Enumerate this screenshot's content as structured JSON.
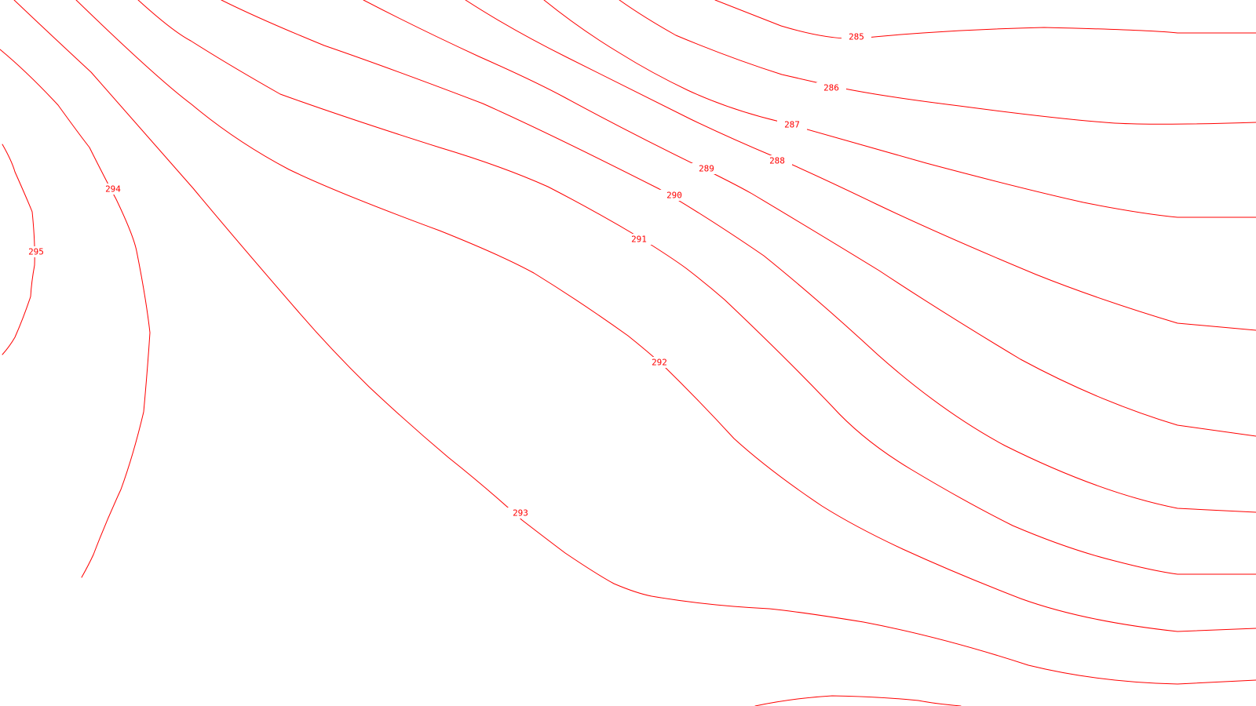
{
  "map": {
    "line_color": "#ff0000",
    "background_color": "#ffffff",
    "contours": [
      {
        "level": "285",
        "label": "285"
      },
      {
        "level": "286",
        "label": "286"
      },
      {
        "level": "287",
        "label": "287"
      },
      {
        "level": "288",
        "label": "288"
      },
      {
        "level": "289",
        "label": "289"
      },
      {
        "level": "290",
        "label": "290"
      },
      {
        "level": "291",
        "label": "291"
      },
      {
        "level": "292",
        "label": "292"
      },
      {
        "level": "293",
        "label": "293"
      },
      {
        "level": "294",
        "label": "294"
      },
      {
        "level": "295",
        "label": "295"
      },
      {
        "level": "unlabeled"
      }
    ]
  }
}
